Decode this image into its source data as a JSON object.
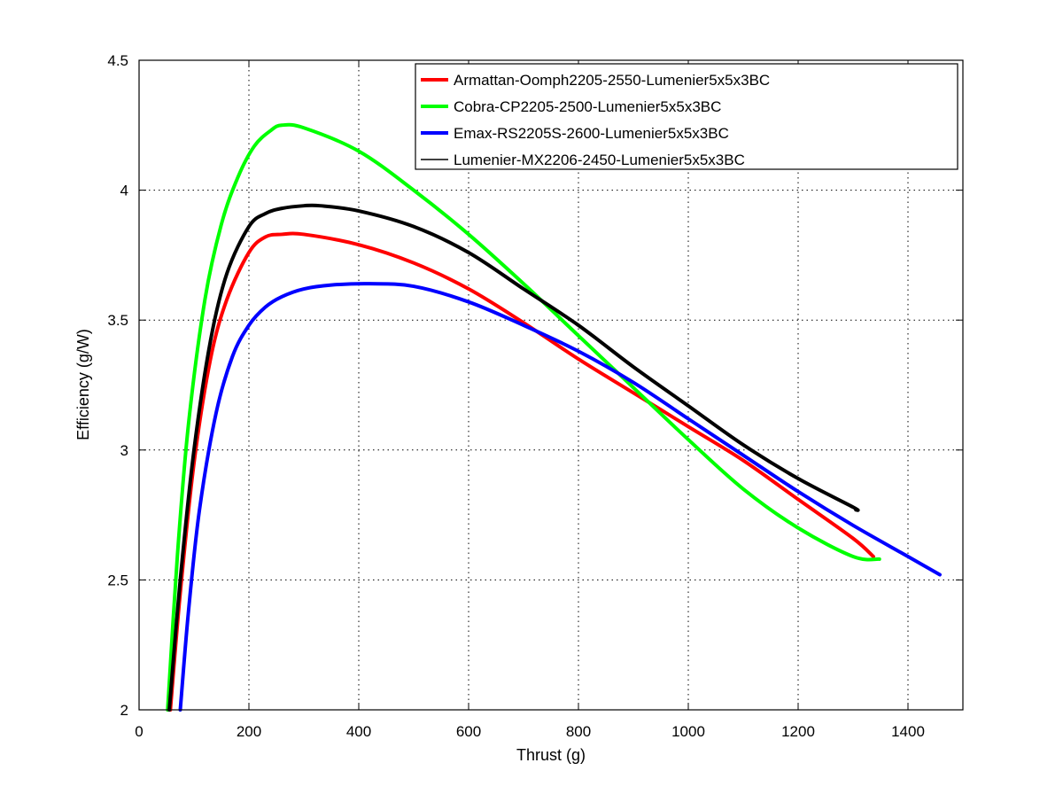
{
  "chart_data": {
    "type": "line",
    "title": "",
    "xlabel": "Thrust (g)",
    "ylabel": "Efficiency (g/W)",
    "xlim": [
      0,
      1500
    ],
    "ylim": [
      2,
      4.5
    ],
    "xticks": [
      0,
      200,
      400,
      600,
      800,
      1000,
      1200,
      1400
    ],
    "yticks": [
      2,
      2.5,
      3,
      3.5,
      4,
      4.5
    ],
    "xtick_labels": [
      "0",
      "200",
      "400",
      "600",
      "800",
      "1000",
      "1200",
      "1400"
    ],
    "ytick_labels": [
      "2",
      "2.5",
      "3",
      "3.5",
      "4",
      "4.5"
    ],
    "grid": true,
    "legend_position": "top-right",
    "series": [
      {
        "name": "Armattan-Oomph2205-2550-Lumenier5x5x3BC",
        "color": "#ff0000",
        "line_width": 4,
        "x": [
          57,
          75,
          100,
          130,
          160,
          200,
          230,
          260,
          300,
          400,
          500,
          600,
          700,
          800,
          900,
          1000,
          1100,
          1200,
          1300,
          1337
        ],
        "y": [
          2.0,
          2.45,
          2.95,
          3.35,
          3.58,
          3.76,
          3.82,
          3.83,
          3.83,
          3.79,
          3.72,
          3.62,
          3.49,
          3.35,
          3.22,
          3.09,
          2.96,
          2.81,
          2.66,
          2.59
        ]
      },
      {
        "name": "Cobra-CP2205-2500-Lumenier5x5x3BC",
        "color": "#00ff00",
        "line_width": 4,
        "x": [
          52,
          70,
          90,
          120,
          150,
          180,
          210,
          240,
          260,
          300,
          400,
          500,
          600,
          700,
          800,
          900,
          1000,
          1100,
          1200,
          1300,
          1348
        ],
        "y": [
          2.0,
          2.6,
          3.1,
          3.58,
          3.87,
          4.05,
          4.17,
          4.23,
          4.25,
          4.24,
          4.15,
          4.0,
          3.83,
          3.64,
          3.44,
          3.24,
          3.04,
          2.85,
          2.7,
          2.59,
          2.58
        ]
      },
      {
        "name": "Emax-RS2205S-2600-Lumenier5x5x3BC",
        "color": "#0000ff",
        "line_width": 4,
        "x": [
          75,
          90,
          110,
          140,
          170,
          200,
          230,
          260,
          300,
          350,
          420,
          500,
          600,
          700,
          800,
          900,
          1000,
          1100,
          1200,
          1300,
          1400,
          1458
        ],
        "y": [
          2.0,
          2.38,
          2.77,
          3.14,
          3.36,
          3.48,
          3.55,
          3.59,
          3.62,
          3.635,
          3.64,
          3.63,
          3.57,
          3.48,
          3.38,
          3.26,
          3.12,
          2.98,
          2.84,
          2.71,
          2.59,
          2.52
        ]
      },
      {
        "name": "Lumenier-MX2206-2450-Lumenier5x5x3BC",
        "color": "#000000",
        "line_width": 4,
        "legend_line_width": 1.5,
        "x": [
          55,
          75,
          100,
          130,
          160,
          200,
          230,
          260,
          300,
          330,
          400,
          500,
          600,
          700,
          800,
          900,
          1000,
          1100,
          1200,
          1300,
          1305
        ],
        "y": [
          2.0,
          2.5,
          3.0,
          3.42,
          3.68,
          3.86,
          3.91,
          3.93,
          3.94,
          3.94,
          3.92,
          3.86,
          3.76,
          3.62,
          3.48,
          3.32,
          3.17,
          3.02,
          2.89,
          2.78,
          2.77
        ]
      }
    ]
  }
}
